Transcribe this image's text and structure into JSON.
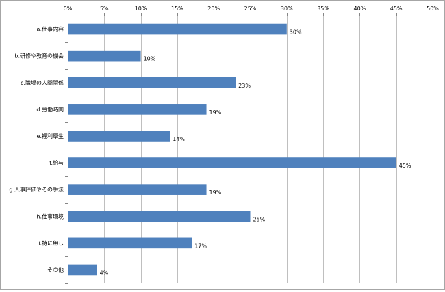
{
  "chart_data": {
    "type": "bar",
    "orientation": "horizontal",
    "categories": [
      "a.仕事内容",
      "b.研修や教育の機会",
      "c.職場の人間関係",
      "d.労働時間",
      "e.福利厚生",
      "f.給与",
      "g.人事評価やその手法",
      "h.仕事環境",
      "i.特に無し",
      "その他"
    ],
    "values": [
      30,
      10,
      23,
      19,
      14,
      45,
      19,
      25,
      17,
      4
    ],
    "value_labels": [
      "30%",
      "10%",
      "23%",
      "19%",
      "14%",
      "45%",
      "19%",
      "25%",
      "17%",
      "4%"
    ],
    "xlim": [
      0,
      50
    ],
    "x_ticks": [
      0,
      5,
      10,
      15,
      20,
      25,
      30,
      35,
      40,
      45,
      50
    ],
    "x_tick_labels": [
      "0%",
      "5%",
      "10%",
      "15%",
      "20%",
      "25%",
      "30%",
      "35%",
      "40%",
      "45%",
      "50%"
    ],
    "x_axis_position": "top",
    "grid": true,
    "legend": "none",
    "colors": {
      "bar": "#4f81bd",
      "grid": "#bfbfbf",
      "axis": "#868686",
      "border": "#a6a6a6"
    }
  }
}
